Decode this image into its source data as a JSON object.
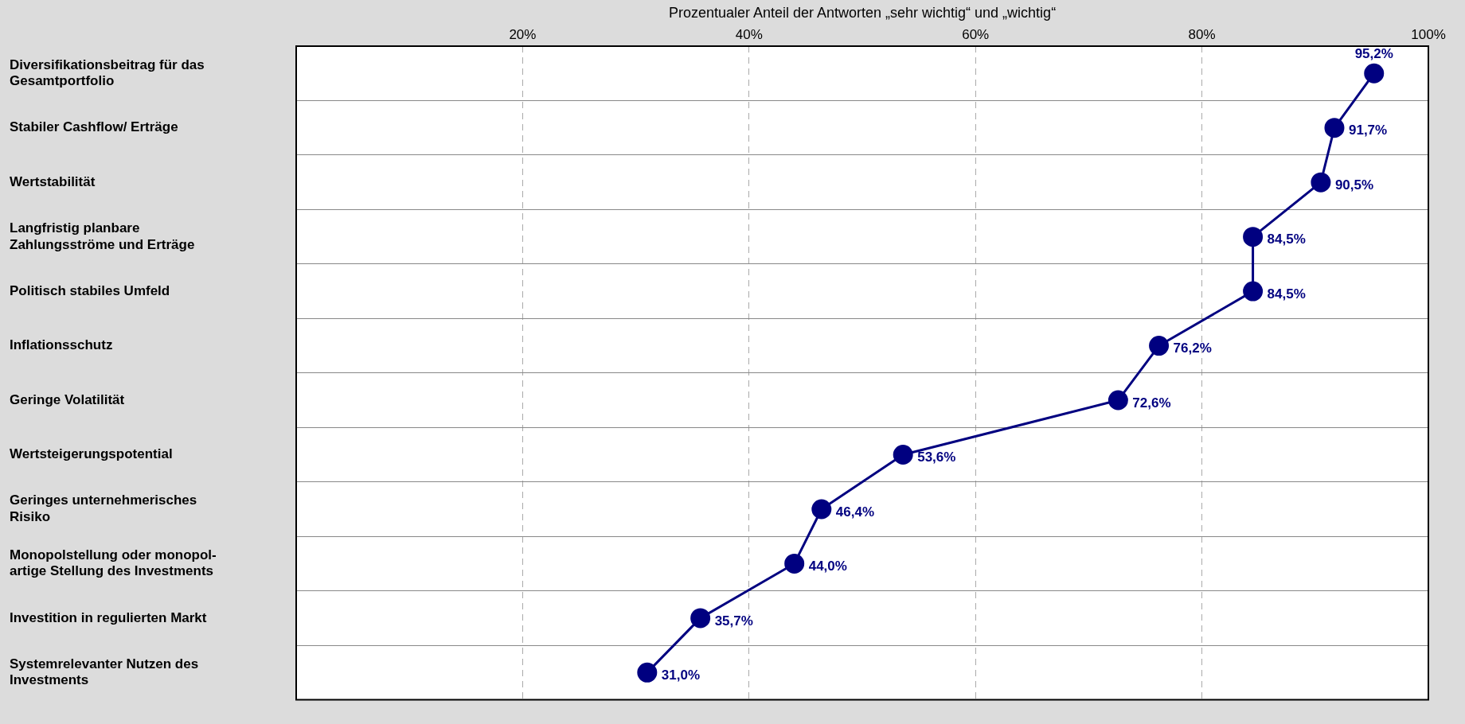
{
  "chart_data": {
    "type": "line",
    "orientation": "horizontal",
    "xlabel": "Prozentualer Anteil der Antworten „sehr wichtig“ und „wichtig“",
    "categories": [
      "Diversifikationsbeitrag für das Gesamtportfolio",
      "Stabiler Cashflow/ Erträge",
      "Wertstabilität",
      "Langfristig planbare Zahlungsströme und Erträge",
      "Politisch stabiles Umfeld",
      "Inflationsschutz",
      "Geringe Volatilität",
      "Wertsteigerungspotential",
      "Geringes unternehmerisches Risiko",
      "Monopolstellung oder monopol-artige Stellung des Investments",
      "Investition in regulierten Markt",
      "Systemrelevanter Nutzen des Investments"
    ],
    "values": [
      95.2,
      91.7,
      90.5,
      84.5,
      84.5,
      76.2,
      72.6,
      53.6,
      46.4,
      44.0,
      35.7,
      31.0
    ],
    "value_labels": [
      "95,2%",
      "91,7%",
      "90,5%",
      "84,5%",
      "84,5%",
      "76,2%",
      "72,6%",
      "53,6%",
      "46,4%",
      "44,0%",
      "35,7%",
      "31,0%"
    ],
    "color": "#000080",
    "xlim": [
      0,
      100
    ],
    "xticks": [
      {
        "value": 20,
        "label": "20%"
      },
      {
        "value": 40,
        "label": "40%"
      },
      {
        "value": 60,
        "label": "60%"
      },
      {
        "value": 80,
        "label": "80%"
      },
      {
        "value": 100,
        "label": "100%"
      }
    ],
    "grid": true,
    "marker": "circle",
    "line_style": "solid",
    "legend": false
  }
}
